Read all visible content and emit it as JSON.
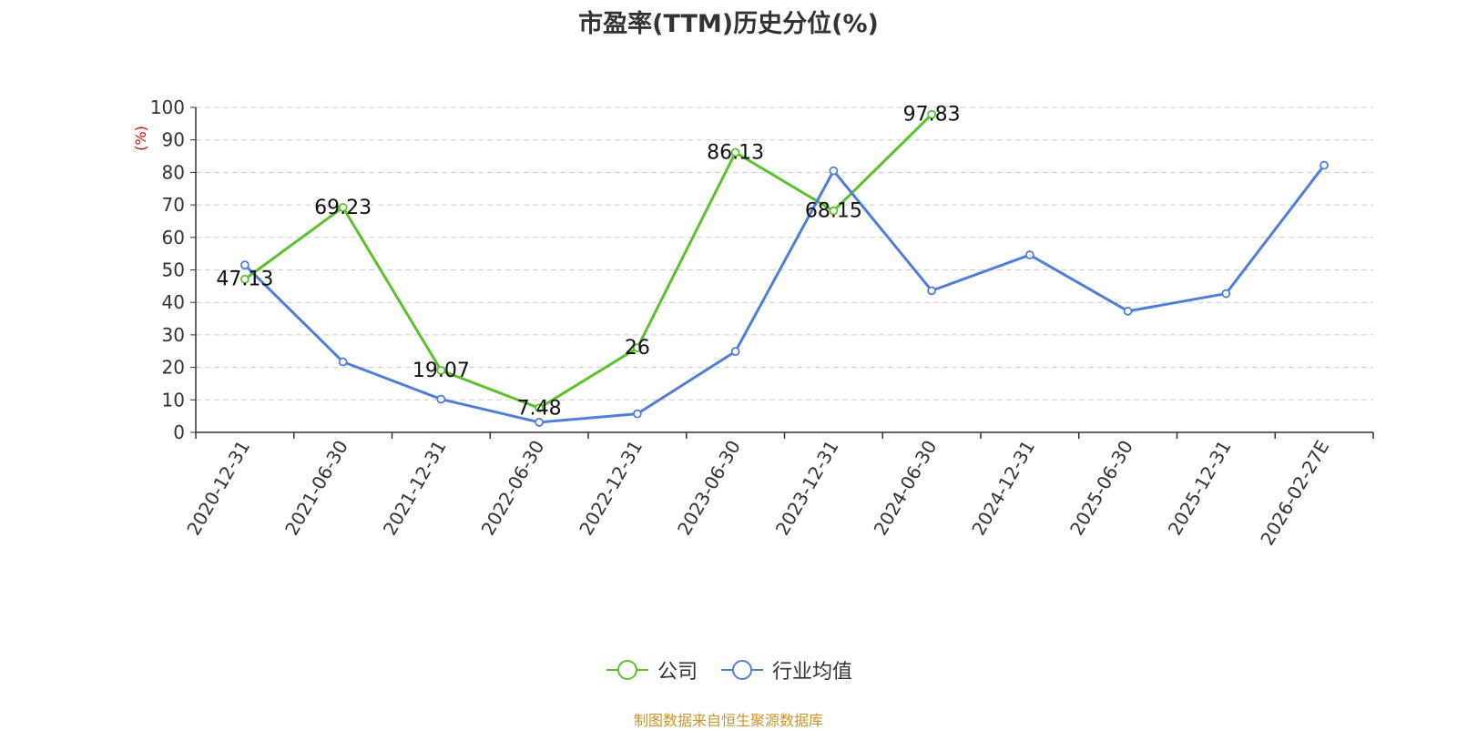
{
  "chart_data": {
    "type": "line",
    "title": "市盈率(TTM)历史分位(%)",
    "ylabel": "(%)",
    "xlabel": "",
    "ylim": [
      0,
      100
    ],
    "yticks": [
      0,
      10,
      20,
      30,
      40,
      50,
      60,
      70,
      80,
      90,
      100
    ],
    "grid": true,
    "legend_position": "bottom",
    "categories": [
      "2020-12-31",
      "2021-06-30",
      "2021-12-31",
      "2022-06-30",
      "2022-12-31",
      "2023-06-30",
      "2023-12-31",
      "2024-06-30",
      "2024-12-31",
      "2025-06-30",
      "2025-12-31",
      "2026-02-27E"
    ],
    "series": [
      {
        "name": "公司",
        "color": "#5cc22c",
        "values": [
          47.13,
          69.23,
          19.07,
          7.48,
          26,
          86.13,
          68.15,
          97.83,
          null,
          null,
          null,
          null
        ],
        "data_labels": [
          "47.13",
          "69.23",
          "19.07",
          "7.48",
          "26",
          "86.13",
          "68.15",
          "97.83"
        ]
      },
      {
        "name": "行业均值",
        "color": "#4f7fd9",
        "values": [
          51.5,
          21.7,
          10.2,
          3.1,
          5.7,
          24.9,
          80.5,
          43.6,
          54.6,
          37.3,
          42.7,
          82.2
        ]
      }
    ]
  },
  "footer": {
    "source": "制图数据来自恒生聚源数据库"
  }
}
